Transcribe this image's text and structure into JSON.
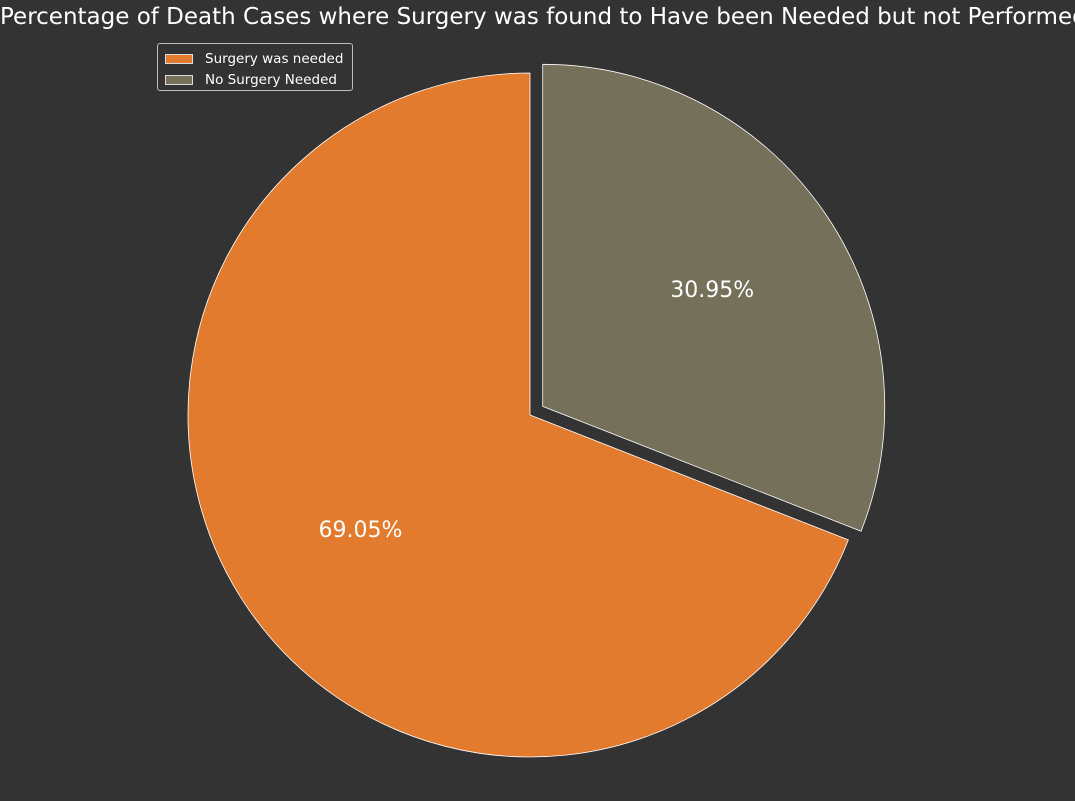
{
  "chart_data": {
    "type": "pie",
    "title": "Percentage of Death Cases where Surgery was found to Have been Needed but not Performed",
    "slices": [
      {
        "label": "Surgery was needed",
        "value": 69.05,
        "label_text": "69.05%",
        "color": "#e37b2f",
        "explode": false
      },
      {
        "label": "No Surgery Needed",
        "value": 30.95,
        "label_text": "30.95%",
        "color": "#75705a",
        "explode": true
      }
    ],
    "start_angle": "90 (12 o'clock), counterclockwise",
    "legend_location": "top-left",
    "background": "#333333",
    "edge_color": "#ffffff"
  }
}
